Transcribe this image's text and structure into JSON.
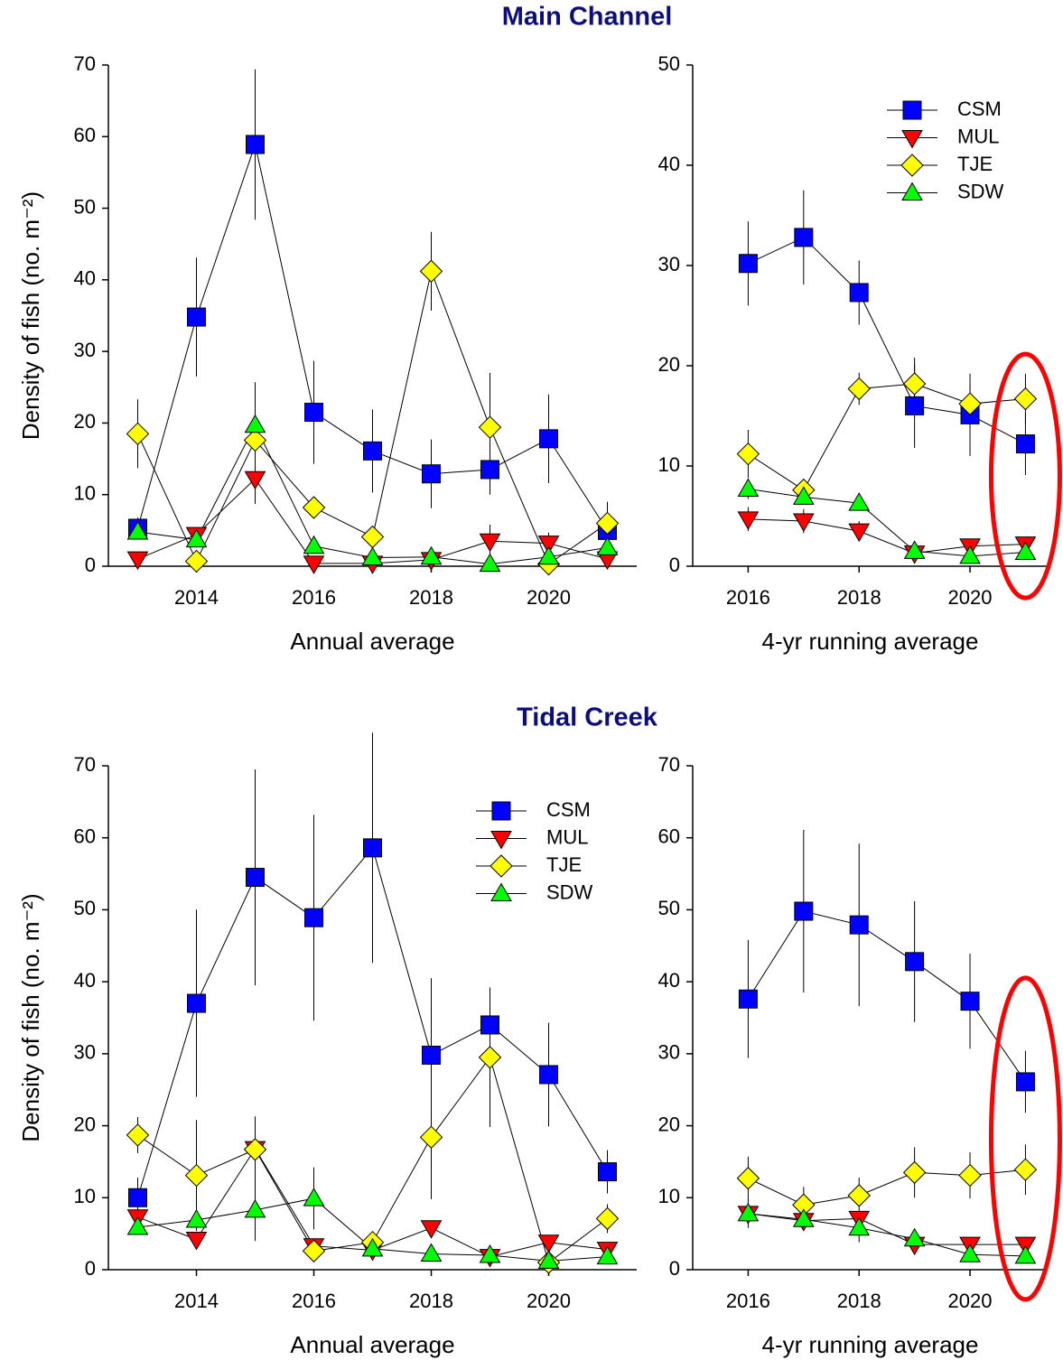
{
  "chart_data": [
    {
      "type": "line",
      "title": "Main Channel",
      "xlabel": "Annual average",
      "ylabel": "Density of fish (no. m⁻²)",
      "x": [
        2013,
        2014,
        2015,
        2016,
        2017,
        2018,
        2019,
        2020,
        2021
      ],
      "xlim": [
        2012.5,
        2021.5
      ],
      "xticks": [
        2014,
        2016,
        2018,
        2020
      ],
      "ylim": [
        0,
        70
      ],
      "yticks": [
        0,
        10,
        20,
        30,
        40,
        50,
        60,
        70
      ],
      "series": [
        {
          "name": "CSM",
          "color": "#0000ff",
          "marker": "square",
          "values": [
            5.3,
            34.8,
            58.9,
            21.5,
            16.1,
            12.9,
            13.5,
            17.8,
            5.0
          ],
          "errors": [
            1.5,
            8.3,
            10.5,
            7.2,
            5.8,
            4.8,
            3.5,
            6.2,
            1.5
          ]
        },
        {
          "name": "MUL",
          "color": "#ff0000",
          "marker": "triangle-down",
          "values": [
            1.0,
            4.4,
            12.2,
            0.4,
            0.4,
            0.9,
            3.5,
            3.2,
            1.0
          ],
          "errors": [
            0.3,
            1.0,
            3.5,
            0.3,
            0.3,
            0.5,
            2.3,
            1.5,
            0.5
          ]
        },
        {
          "name": "TJE",
          "color": "#ffff00",
          "marker": "diamond",
          "values": [
            18.5,
            0.7,
            17.6,
            8.2,
            4.1,
            41.2,
            19.4,
            0.3,
            6.0
          ],
          "errors": [
            4.8,
            0.5,
            4.0,
            1.0,
            1.0,
            5.5,
            7.6,
            0.3,
            3.0
          ]
        },
        {
          "name": "SDW",
          "color": "#00ff00",
          "marker": "triangle-up",
          "values": [
            4.8,
            3.7,
            19.7,
            2.8,
            1.2,
            1.3,
            0.3,
            1.3,
            2.6
          ],
          "errors": [
            1.0,
            1.0,
            6.0,
            1.0,
            0.5,
            0.5,
            0.3,
            0.5,
            1.0
          ]
        }
      ]
    },
    {
      "type": "line",
      "xlabel": "4-yr running average",
      "x": [
        2016,
        2017,
        2018,
        2019,
        2020,
        2021
      ],
      "xlim": [
        2015.0,
        2021.4
      ],
      "xticks": [
        2016,
        2018,
        2020
      ],
      "ylim": [
        0,
        50
      ],
      "yticks": [
        0,
        10,
        20,
        30,
        40,
        50
      ],
      "legend": "upper right",
      "highlight": true,
      "series": [
        {
          "name": "CSM",
          "color": "#0000ff",
          "marker": "square",
          "values": [
            30.2,
            32.8,
            27.3,
            16.0,
            15.1,
            12.2
          ],
          "errors": [
            4.2,
            4.7,
            3.2,
            4.2,
            4.1,
            3.1
          ]
        },
        {
          "name": "MUL",
          "color": "#ff0000",
          "marker": "triangle-down",
          "values": [
            4.7,
            4.5,
            3.5,
            1.3,
            2.0,
            2.2
          ],
          "errors": [
            1.2,
            1.2,
            1.0,
            0.5,
            0.5,
            0.5
          ]
        },
        {
          "name": "TJE",
          "color": "#ffff00",
          "marker": "diamond",
          "values": [
            11.2,
            7.6,
            17.7,
            18.2,
            16.2,
            16.7
          ],
          "errors": [
            2.4,
            1.0,
            1.6,
            2.6,
            2.0,
            2.5
          ]
        },
        {
          "name": "SDW",
          "color": "#00ff00",
          "marker": "triangle-up",
          "values": [
            7.7,
            6.9,
            6.3,
            1.5,
            1.0,
            1.4
          ],
          "errors": [
            1.0,
            0.5,
            0.5,
            0.5,
            0.3,
            0.3
          ]
        }
      ]
    },
    {
      "type": "line",
      "title": "Tidal Creek",
      "xlabel": "Annual average",
      "ylabel": "Density of fish (no. m⁻²)",
      "x": [
        2013,
        2014,
        2015,
        2016,
        2017,
        2018,
        2019,
        2020,
        2021
      ],
      "xlim": [
        2012.5,
        2021.5
      ],
      "xticks": [
        2014,
        2016,
        2018,
        2020
      ],
      "ylim": [
        0,
        70
      ],
      "yticks": [
        0,
        10,
        20,
        30,
        40,
        50,
        60,
        70
      ],
      "legend": "upper right",
      "series": [
        {
          "name": "CSM",
          "color": "#0000ff",
          "marker": "square",
          "values": [
            10.0,
            37.0,
            54.5,
            48.9,
            58.6,
            29.8,
            34.0,
            27.1,
            13.6
          ],
          "errors": [
            2.8,
            13.0,
            15.0,
            14.3,
            16.0,
            10.7,
            5.0,
            7.2,
            3.0
          ]
        },
        {
          "name": "MUL",
          "color": "#ff0000",
          "marker": "triangle-down",
          "values": [
            7.3,
            4.2,
            16.8,
            3.3,
            2.7,
            5.8,
            1.8,
            3.8,
            2.8
          ],
          "errors": [
            1.0,
            1.0,
            4.5,
            1.0,
            0.5,
            1.0,
            0.5,
            1.0,
            0.5
          ]
        },
        {
          "name": "TJE",
          "color": "#ffff00",
          "marker": "diamond",
          "values": [
            18.7,
            13.1,
            16.7,
            2.6,
            3.8,
            18.4,
            29.5,
            1.0,
            7.1
          ],
          "errors": [
            2.5,
            7.7,
            4.5,
            1.0,
            1.0,
            8.6,
            9.7,
            0.5,
            2.0
          ]
        },
        {
          "name": "SDW",
          "color": "#00ff00",
          "marker": "triangle-up",
          "values": [
            5.9,
            6.9,
            8.3,
            9.9,
            2.9,
            2.2,
            2.0,
            1.2,
            1.8
          ],
          "errors": [
            1.0,
            1.3,
            4.3,
            4.3,
            1.0,
            0.5,
            0.5,
            0.5,
            0.5
          ]
        }
      ]
    },
    {
      "type": "line",
      "xlabel": "4-yr running average",
      "x": [
        2016,
        2017,
        2018,
        2019,
        2020,
        2021
      ],
      "xlim": [
        2015.0,
        2021.4
      ],
      "xticks": [
        2016,
        2018,
        2020
      ],
      "ylim": [
        0,
        70
      ],
      "yticks": [
        0,
        10,
        20,
        30,
        40,
        50,
        60,
        70
      ],
      "highlight": true,
      "series": [
        {
          "name": "CSM",
          "color": "#0000ff",
          "marker": "square",
          "values": [
            37.6,
            49.8,
            47.9,
            42.8,
            37.3,
            26.1
          ],
          "errors": [
            8.2,
            11.3,
            11.3,
            8.4,
            6.6,
            4.3
          ]
        },
        {
          "name": "MUL",
          "color": "#ff0000",
          "marker": "triangle-down",
          "values": [
            7.8,
            6.8,
            7.1,
            3.5,
            3.5,
            3.5
          ],
          "errors": [
            1.5,
            1.0,
            1.0,
            0.5,
            0.5,
            0.5
          ]
        },
        {
          "name": "TJE",
          "color": "#ffff00",
          "marker": "diamond",
          "values": [
            12.7,
            9.0,
            10.3,
            13.5,
            13.1,
            13.9
          ],
          "errors": [
            3.0,
            2.5,
            2.5,
            3.5,
            3.2,
            3.5
          ]
        },
        {
          "name": "SDW",
          "color": "#00ff00",
          "marker": "triangle-up",
          "values": [
            7.8,
            7.0,
            5.8,
            4.3,
            2.1,
            1.9
          ],
          "errors": [
            2.0,
            1.5,
            2.0,
            1.0,
            0.5,
            0.5
          ]
        }
      ]
    }
  ]
}
